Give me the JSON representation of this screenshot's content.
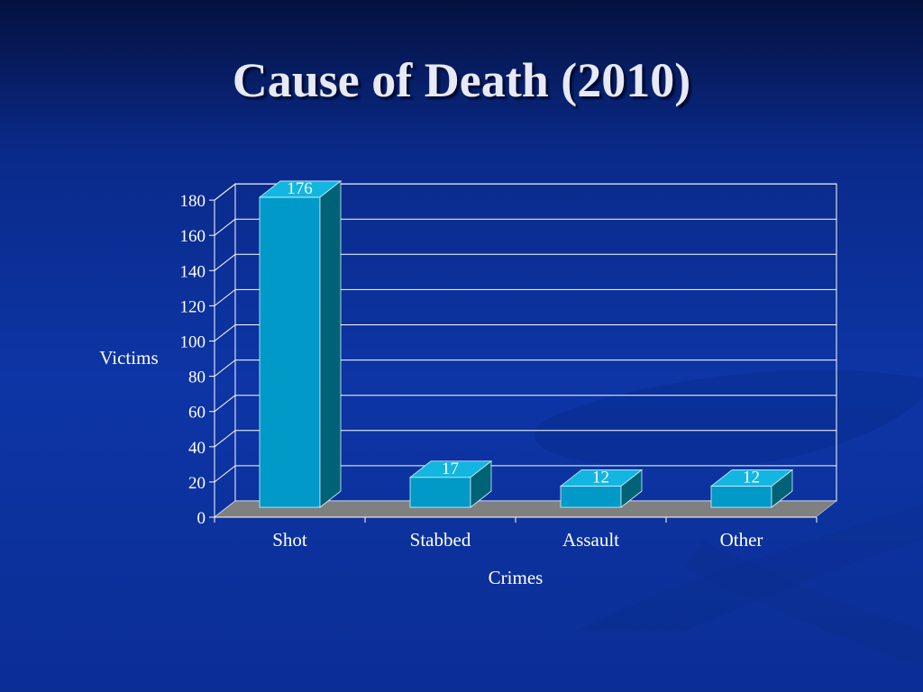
{
  "slide": {
    "title": "Cause of Death (2010)"
  },
  "colors": {
    "bar_front": "#0099c8",
    "bar_top": "#13b6e0",
    "bar_side": "#006277",
    "floor": "#808080",
    "grid": "#ffffff",
    "background": "#0d35a5"
  },
  "chart_data": {
    "type": "bar",
    "title": "",
    "xlabel": "Crimes",
    "ylabel": "Victims",
    "categories": [
      "Shot",
      "Stabbed",
      "Assault",
      "Other"
    ],
    "values": [
      176,
      17,
      12,
      12
    ],
    "data_labels": [
      "176",
      "17",
      "12",
      "12"
    ],
    "ylim": [
      0,
      180
    ],
    "yticks": [
      0,
      20,
      40,
      60,
      80,
      100,
      120,
      140,
      160,
      180
    ],
    "grid": true,
    "style": "3d"
  }
}
